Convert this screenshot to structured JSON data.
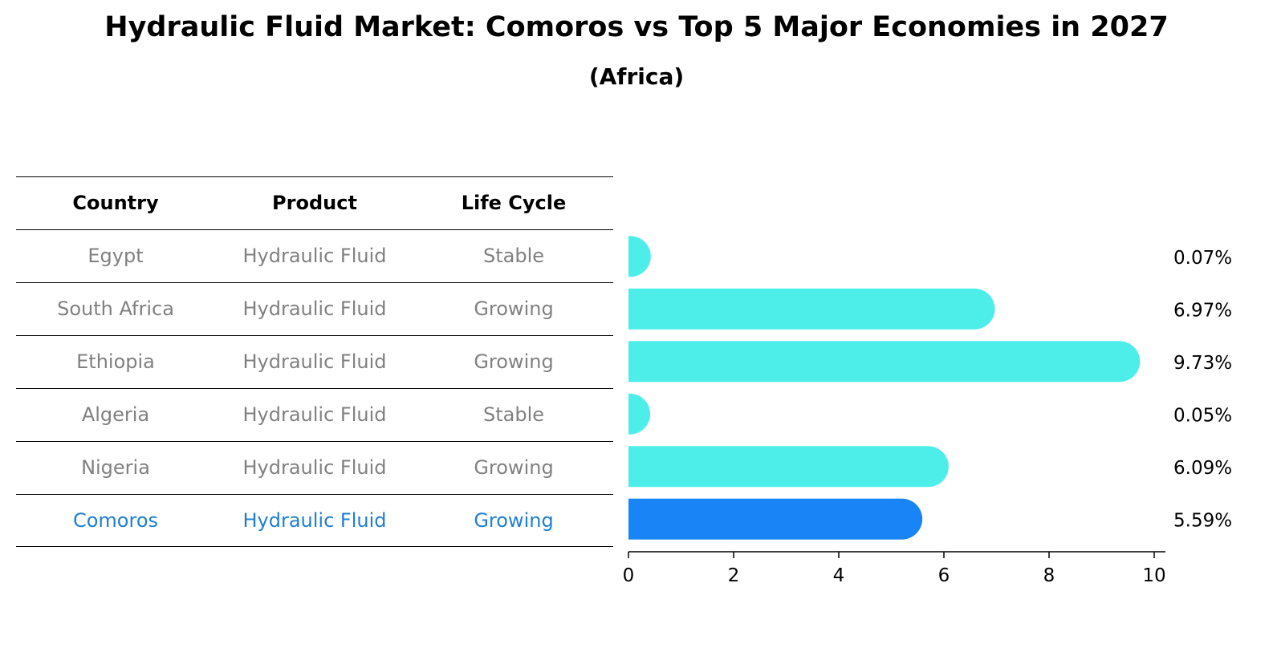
{
  "title": "Hydraulic Fluid Market: Comoros vs Top 5 Major Economies in 2027",
  "subtitle": "(Africa)",
  "table": {
    "headers": [
      "Country",
      "Product",
      "Life Cycle"
    ],
    "rows": [
      {
        "country": "Egypt",
        "product": "Hydraulic Fluid",
        "life_cycle": "Stable"
      },
      {
        "country": "South Africa",
        "product": "Hydraulic Fluid",
        "life_cycle": "Growing"
      },
      {
        "country": "Ethiopia",
        "product": "Hydraulic Fluid",
        "life_cycle": "Growing"
      },
      {
        "country": "Algeria",
        "product": "Hydraulic Fluid",
        "life_cycle": "Stable"
      },
      {
        "country": "Nigeria",
        "product": "Hydraulic Fluid",
        "life_cycle": "Growing"
      },
      {
        "country": "Comoros",
        "product": "Hydraulic Fluid",
        "life_cycle": "Growing"
      }
    ]
  },
  "chart_data": {
    "type": "bar",
    "orientation": "horizontal",
    "categories": [
      "Egypt",
      "South Africa",
      "Ethiopia",
      "Algeria",
      "Nigeria",
      "Comoros"
    ],
    "values": [
      0.07,
      6.97,
      9.73,
      0.05,
      6.09,
      5.59
    ],
    "value_labels": [
      "0.07%",
      "6.97%",
      "9.73%",
      "0.05%",
      "6.09%",
      "5.59%"
    ],
    "highlight": "Comoros",
    "xlim": [
      0,
      10
    ],
    "xticks": [
      0,
      2,
      4,
      6,
      8,
      10
    ],
    "grid": false,
    "colors": {
      "default": "#4deeea",
      "highlight": "#1984f5"
    }
  }
}
